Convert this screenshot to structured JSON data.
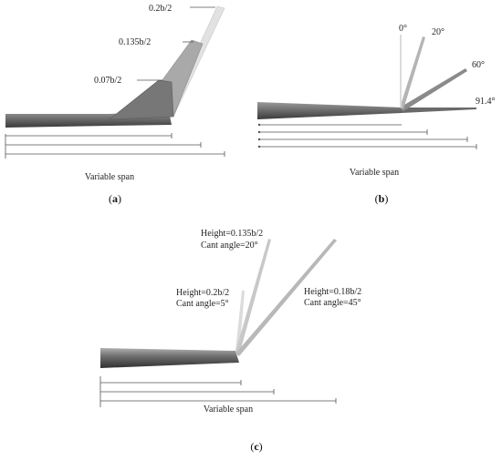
{
  "panel_a": {
    "labels": [
      "0.2b/2",
      "0.135b/2",
      "0.07b/2"
    ],
    "caption_text": "Variable span",
    "tag": "a"
  },
  "panel_b": {
    "labels": [
      "0°",
      "20°",
      "60°",
      "91.4°"
    ],
    "caption_text": "Variable span",
    "tag": "b"
  },
  "panel_c": {
    "winglets": [
      {
        "height": "Height=0.135b/2",
        "cant": "Cant angle=20°"
      },
      {
        "height": "Height=0.2b/2",
        "cant": "Cant angle=5°"
      },
      {
        "height": "Height=0.18b/2",
        "cant": "Cant angle=45°"
      }
    ],
    "caption_text": "Variable span",
    "tag": "c"
  },
  "colors": {
    "wing_dark": "#555555",
    "wing_light": "#9a9a9a",
    "winglet_dark": "#777777",
    "winglet_mid": "#a8a8a8",
    "winglet_light": "#d8d8d8"
  }
}
